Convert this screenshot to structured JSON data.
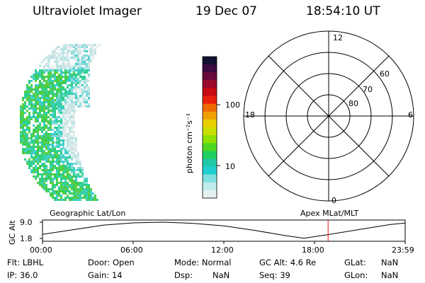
{
  "header": {
    "instrument": "Ultraviolet Imager",
    "date": "19 Dec 07",
    "time": "18:54:10 UT"
  },
  "colorbar": {
    "unit_label": "photon cm⁻²s⁻¹",
    "ticks": [
      "100",
      "10"
    ],
    "colors": [
      "#101030",
      "#3a0a40",
      "#6a0a3a",
      "#9a0a2a",
      "#c80a14",
      "#e8200c",
      "#f06a00",
      "#f0a000",
      "#e8d000",
      "#c8e000",
      "#90e000",
      "#50d820",
      "#20d060",
      "#20c8a8",
      "#20d0d0",
      "#80e0e0",
      "#c0ecec",
      "#e4f0f0"
    ]
  },
  "polar": {
    "labels": {
      "top": "12",
      "bottom": "0",
      "left": "18",
      "right": "6",
      "lat60": "60",
      "lat70": "70",
      "lat80": "80"
    }
  },
  "timeline": {
    "y_label": "GC Alt",
    "y_ticks": [
      "9.0",
      "1.8"
    ],
    "geo_label": "Geographic Lat/Lon",
    "apex_label": "Apex MLat/MLT",
    "x_ticks": [
      "00:00",
      "06:00",
      "12:00",
      "18:00",
      "23:59"
    ],
    "current_marker_hours": 18.9
  },
  "info": {
    "flt": "Flt: LBHL",
    "ip": "IP: 36.0",
    "door": "Door: Open",
    "gain": "Gain: 14",
    "mode": "Mode: Normal",
    "dsp": "Dsp:",
    "dsp_val": "NaN",
    "gc_alt": "GC Alt: 4.6 Re",
    "seq": "Seq: 39",
    "glat": "GLat:",
    "glat_val": "NaN",
    "glon": "GLon:",
    "glon_val": "NaN"
  }
}
